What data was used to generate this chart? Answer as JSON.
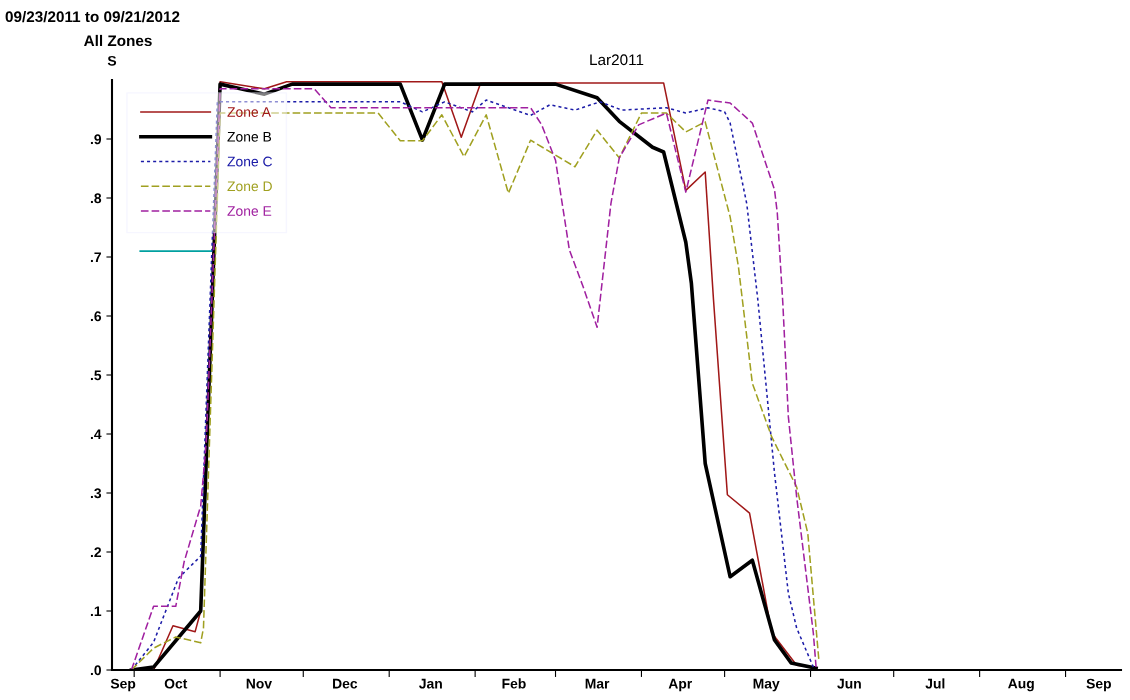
{
  "chart_data": {
    "type": "line",
    "title": "Lar2011",
    "ylabel": "S",
    "annotations": [
      "09/23/2011 to 09/21/2012",
      "All Zones"
    ],
    "xlim": [
      "2011-09-23",
      "2012-09-21"
    ],
    "xticks": [
      {
        "value": "2011-09-27",
        "label": "Sep"
      },
      {
        "value": "2011-10-01",
        "label": null
      },
      {
        "value": "2011-10-16",
        "label": "Oct"
      },
      {
        "value": "2011-11-01",
        "label": null
      },
      {
        "value": "2011-11-15",
        "label": "Nov"
      },
      {
        "value": "2011-12-01",
        "label": null
      },
      {
        "value": "2011-12-16",
        "label": "Dec"
      },
      {
        "value": "2012-01-01",
        "label": null
      },
      {
        "value": "2012-01-16",
        "label": "Jan"
      },
      {
        "value": "2012-02-01",
        "label": null
      },
      {
        "value": "2012-02-15",
        "label": "Feb"
      },
      {
        "value": "2012-03-01",
        "label": null
      },
      {
        "value": "2012-03-16",
        "label": "Mar"
      },
      {
        "value": "2012-04-01",
        "label": null
      },
      {
        "value": "2012-04-15",
        "label": "Apr"
      },
      {
        "value": "2012-05-01",
        "label": null
      },
      {
        "value": "2012-05-16",
        "label": "May"
      },
      {
        "value": "2012-06-01",
        "label": null
      },
      {
        "value": "2012-06-15",
        "label": "Jun"
      },
      {
        "value": "2012-07-01",
        "label": null
      },
      {
        "value": "2012-07-16",
        "label": "Jul"
      },
      {
        "value": "2012-08-01",
        "label": null
      },
      {
        "value": "2012-08-16",
        "label": "Aug"
      },
      {
        "value": "2012-09-01",
        "label": null
      },
      {
        "value": "2012-09-13",
        "label": "Sep"
      }
    ],
    "ylim": [
      0,
      1.0
    ],
    "yticks": [
      {
        "value": 0,
        "label": ".0"
      },
      {
        "value": 0.1,
        "label": ".1"
      },
      {
        "value": 0.2,
        "label": ".2"
      },
      {
        "value": 0.3,
        "label": ".3"
      },
      {
        "value": 0.4,
        "label": ".4"
      },
      {
        "value": 0.5,
        "label": ".5"
      },
      {
        "value": 0.6,
        "label": ".6"
      },
      {
        "value": 0.7,
        "label": ".7"
      },
      {
        "value": 0.8,
        "label": ".8"
      },
      {
        "value": 0.9,
        "label": ".9"
      }
    ],
    "grid": false,
    "legend": "top left",
    "marker": "none",
    "series": [
      {
        "name": "Zone A",
        "color": "#a01818",
        "line_style": "solid",
        "x": [
          "2011-09-30",
          "2011-10-08",
          "2011-10-15",
          "2011-10-23",
          "2011-10-25",
          "2011-11-01",
          "2011-11-17",
          "2011-11-25",
          "2012-01-20",
          "2012-01-27",
          "2012-02-03",
          "2012-04-09",
          "2012-04-17",
          "2012-04-24",
          "2012-04-27",
          "2012-05-02",
          "2012-05-10",
          "2012-05-18",
          "2012-05-27",
          "2012-06-02"
        ],
        "values": [
          0,
          0,
          0.075,
          0.065,
          0.1,
          0.997,
          0.985,
          0.997,
          0.997,
          0.903,
          0.995,
          0.995,
          0.813,
          0.844,
          0.627,
          0.297,
          0.266,
          0.063,
          0.008,
          0.005
        ]
      },
      {
        "name": "Zone B",
        "color": "#000000",
        "line_style": "solid",
        "x": [
          "2011-09-30",
          "2011-10-08",
          "2011-10-25",
          "2011-11-01",
          "2011-11-17",
          "2011-11-27",
          "2012-01-05",
          "2012-01-13",
          "2012-01-21",
          "2012-03-01",
          "2012-03-16",
          "2012-03-24",
          "2012-04-05",
          "2012-04-09",
          "2012-04-17",
          "2012-04-19",
          "2012-04-24",
          "2012-05-03",
          "2012-05-11",
          "2012-05-19",
          "2012-05-25",
          "2012-06-03"
        ],
        "values": [
          0,
          0.005,
          0.1,
          0.993,
          0.976,
          0.993,
          0.993,
          0.898,
          0.993,
          0.993,
          0.97,
          0.93,
          0.886,
          0.878,
          0.725,
          0.656,
          0.35,
          0.158,
          0.186,
          0.051,
          0.012,
          0.003
        ]
      },
      {
        "name": "Zone C",
        "color": "#1c1ca8",
        "line_style": "dotted",
        "x": [
          "2011-09-30",
          "2011-10-08",
          "2011-10-17",
          "2011-10-25",
          "2011-10-31",
          "2012-01-05",
          "2012-01-13",
          "2012-01-21",
          "2012-01-31",
          "2012-02-05",
          "2012-02-21",
          "2012-02-28",
          "2012-03-08",
          "2012-03-17",
          "2012-03-25",
          "2012-04-10",
          "2012-04-17",
          "2012-04-25",
          "2012-05-01",
          "2012-05-03",
          "2012-05-09",
          "2012-05-13",
          "2012-05-19",
          "2012-05-24",
          "2012-05-27",
          "2012-06-02"
        ],
        "values": [
          0,
          0.047,
          0.156,
          0.193,
          0.963,
          0.963,
          0.946,
          0.963,
          0.946,
          0.966,
          0.94,
          0.958,
          0.949,
          0.963,
          0.949,
          0.953,
          0.944,
          0.953,
          0.946,
          0.927,
          0.79,
          0.627,
          0.334,
          0.13,
          0.071,
          0.005
        ]
      },
      {
        "name": "Zone D",
        "color": "#a0a020",
        "line_style": "dashed",
        "x": [
          "2011-09-30",
          "2011-10-08",
          "2011-10-16",
          "2011-10-25",
          "2011-10-26",
          "2011-11-01",
          "2011-12-28",
          "2012-01-05",
          "2012-01-13",
          "2012-01-20",
          "2012-01-28",
          "2012-02-05",
          "2012-02-13",
          "2012-02-21",
          "2012-03-08",
          "2012-03-16",
          "2012-03-24",
          "2012-04-01",
          "2012-04-10",
          "2012-04-17",
          "2012-04-24",
          "2012-05-03",
          "2012-05-06",
          "2012-05-11",
          "2012-05-18",
          "2012-05-27",
          "2012-05-31",
          "2012-06-04"
        ],
        "values": [
          0,
          0.037,
          0.056,
          0.046,
          0.071,
          0.944,
          0.944,
          0.897,
          0.897,
          0.941,
          0.87,
          0.941,
          0.808,
          0.898,
          0.853,
          0.915,
          0.868,
          0.944,
          0.944,
          0.912,
          0.929,
          0.768,
          0.683,
          0.486,
          0.395,
          0.31,
          0.232,
          0.017
        ]
      },
      {
        "name": "Zone E",
        "color": "#a020a0",
        "line_style": "dashed",
        "x": [
          "2011-09-30",
          "2011-10-04",
          "2011-10-08",
          "2011-10-16",
          "2011-10-19",
          "2011-10-25",
          "2011-10-27",
          "2011-11-01",
          "2011-12-05",
          "2011-12-11",
          "2012-02-21",
          "2012-02-25",
          "2012-03-01",
          "2012-03-06",
          "2012-03-11",
          "2012-03-16",
          "2012-03-21",
          "2012-03-24",
          "2012-03-31",
          "2012-04-10",
          "2012-04-17",
          "2012-04-25",
          "2012-05-03",
          "2012-05-11",
          "2012-05-19",
          "2012-05-20",
          "2012-05-22",
          "2012-05-24",
          "2012-05-27",
          "2012-06-02",
          "2012-06-03"
        ],
        "values": [
          0,
          0.054,
          0.108,
          0.108,
          0.183,
          0.278,
          0.386,
          0.985,
          0.985,
          0.953,
          0.953,
          0.924,
          0.864,
          0.712,
          0.649,
          0.581,
          0.791,
          0.868,
          0.924,
          0.944,
          0.81,
          0.966,
          0.961,
          0.927,
          0.814,
          0.775,
          0.622,
          0.429,
          0.293,
          0.063,
          0.005
        ]
      }
    ]
  }
}
